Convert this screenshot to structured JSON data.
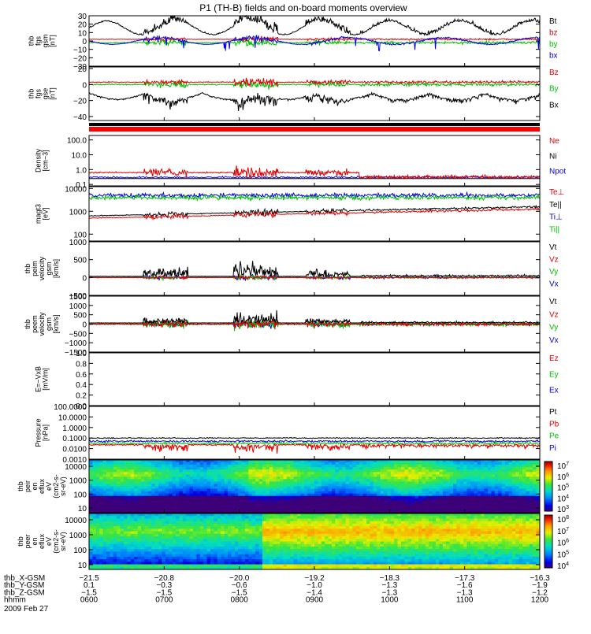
{
  "chart_data": {
    "type": "line",
    "title": "P1 (TH-B) fields and on-board moments overview",
    "panels": [
      {
        "id": "fgs_gsm",
        "ylabel": [
          "thb",
          "fgs",
          "gsm",
          "[nT]"
        ],
        "yticks": [
          "30",
          "20",
          "10",
          "0",
          "−10",
          "−20",
          "−30"
        ],
        "ylim": [
          -30,
          30
        ],
        "legend": [
          {
            "name": "Bt",
            "color": "#000000"
          },
          {
            "name": "bz",
            "color": "#e00000"
          },
          {
            "name": "by",
            "color": "#00c000"
          },
          {
            "name": "bx",
            "color": "#0000e0"
          }
        ]
      },
      {
        "id": "fgs_gse",
        "ylabel": [
          "thb",
          "fgs",
          "gse",
          "[nT]"
        ],
        "yticks": [
          "20",
          "0",
          "−20",
          "−40"
        ],
        "ylim": [
          -45,
          22
        ],
        "legend": [
          {
            "name": "Bz",
            "color": "#e00000"
          },
          {
            "name": "By",
            "color": "#00c000"
          },
          {
            "name": "Bx",
            "color": "#000000"
          }
        ]
      },
      {
        "id": "density",
        "ylabel": [
          "Density",
          "[cm−3]"
        ],
        "yticks": [
          "100.0",
          "10.0",
          "1.0",
          "0.1"
        ],
        "log": true,
        "ylim": [
          0.08,
          200
        ],
        "legend": [
          {
            "name": "Ne",
            "color": "#e00000"
          },
          {
            "name": "Ni",
            "color": "#000000"
          },
          {
            "name": "Npot",
            "color": "#0000e0"
          }
        ]
      },
      {
        "id": "temperature",
        "ylabel": [
          "magt3",
          "[eV]"
        ],
        "yticks": [
          "10000",
          "1000",
          "100"
        ],
        "log": true,
        "ylim": [
          50,
          12000
        ],
        "legend": [
          {
            "name": "Te⊥",
            "color": "#e00000"
          },
          {
            "name": "Te||",
            "color": "#000000"
          },
          {
            "name": "Ti⊥",
            "color": "#0000e0"
          },
          {
            "name": "Ti||",
            "color": "#00c000"
          }
        ]
      },
      {
        "id": "peim_velocity",
        "ylabel": [
          "thb",
          "peim",
          "velocity",
          "gsm",
          "[km/s]"
        ],
        "yticks": [
          "1000",
          "500",
          "0",
          "−500"
        ],
        "ylim": [
          -500,
          1000
        ],
        "legend": [
          {
            "name": "Vt",
            "color": "#000000"
          },
          {
            "name": "Vz",
            "color": "#e00000"
          },
          {
            "name": "Vy",
            "color": "#00c000"
          },
          {
            "name": "Vx",
            "color": "#0000e0"
          }
        ]
      },
      {
        "id": "peem_velocity",
        "ylabel": [
          "thb",
          "peem",
          "velocity",
          "gsm",
          "[km/s]"
        ],
        "yticks": [
          "1500",
          "1000",
          "500",
          "0",
          "−500",
          "−1000",
          "−1500"
        ],
        "ylim": [
          -1500,
          1500
        ],
        "legend": [
          {
            "name": "Vt",
            "color": "#000000"
          },
          {
            "name": "Vz",
            "color": "#e00000"
          },
          {
            "name": "Vy",
            "color": "#00c000"
          },
          {
            "name": "Vx",
            "color": "#0000e0"
          }
        ]
      },
      {
        "id": "efield",
        "ylabel": [
          "E=−VxB",
          "[mV/m]"
        ],
        "yticks": [
          "1.0",
          "0.8",
          "0.6",
          "0.4",
          "0.2",
          "0.0"
        ],
        "ylim": [
          0,
          1
        ],
        "legend": [
          {
            "name": "Ez",
            "color": "#e00000"
          },
          {
            "name": "Ey",
            "color": "#00c000"
          },
          {
            "name": "Ex",
            "color": "#0000e0"
          }
        ]
      },
      {
        "id": "pressure",
        "ylabel": [
          "Pressure",
          "[nPa]"
        ],
        "yticks": [
          "100.0000",
          "10.0000",
          "1.0000",
          "0.1000",
          "0.0100",
          "0.0010"
        ],
        "log": true,
        "ylim": [
          0.001,
          100
        ],
        "legend": [
          {
            "name": "Pt",
            "color": "#000000"
          },
          {
            "name": "Pb",
            "color": "#e00000"
          },
          {
            "name": "Pe",
            "color": "#00c000"
          },
          {
            "name": "Pi",
            "color": "#0000e0"
          }
        ]
      },
      {
        "id": "peir_spec",
        "type": "heatmap",
        "ylabel": [
          "thb",
          "peir",
          "en",
          "eflux",
          "eV",
          "(cm2-s-",
          "sr-eV)"
        ],
        "yticks": [
          "10000",
          "1000",
          "100",
          "10"
        ],
        "log": true,
        "colorbar": [
          "10^7",
          "10^6",
          "10^5",
          "10^4",
          "10^3"
        ]
      },
      {
        "id": "peer_spec",
        "type": "heatmap",
        "ylabel": [
          "thb",
          "peer",
          "en",
          "eflux",
          "eV",
          "(cm2-s-",
          "sr-eV)"
        ],
        "yticks": [
          "10000",
          "1000",
          "100",
          "10"
        ],
        "log": true,
        "colorbar": [
          "10^8",
          "10^7",
          "10^6",
          "10^5",
          "10^4"
        ]
      }
    ],
    "x_axis": {
      "rows": [
        {
          "label": "thb_X-GSM",
          "values": [
            "−21.5",
            "−20.8",
            "−20.0",
            "−19.2",
            "−18.3",
            "−17.3",
            "−16.3"
          ]
        },
        {
          "label": "thb_Y-GSM",
          "values": [
            "0.1",
            "−0.3",
            "−0.6",
            "−1.0",
            "−1.3",
            "−1.6",
            "−1.9"
          ]
        },
        {
          "label": "thb_Z-GSM",
          "values": [
            "−1.5",
            "−1.5",
            "−1.5",
            "−1.4",
            "−1.3",
            "−1.3",
            "−1.2"
          ]
        },
        {
          "label": "hhmm",
          "values": [
            "0600",
            "0700",
            "0800",
            "0900",
            "1000",
            "1100",
            "1200"
          ]
        }
      ],
      "date": "2009 Feb 27"
    }
  }
}
